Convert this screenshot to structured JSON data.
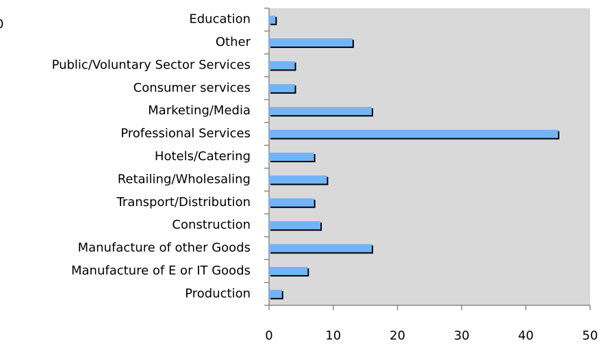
{
  "chart_data": {
    "type": "bar",
    "orientation": "horizontal",
    "annotation": "0",
    "categories": [
      "Education",
      "Other",
      "Public/Voluntary Sector Services",
      "Consumer services",
      "Marketing/Media",
      "Professional Services",
      "Hotels/Catering",
      "Retailing/Wholesaling",
      "Transport/Distribution",
      "Construction",
      "Manufacture of other Goods",
      "Manufacture of E or IT Goods",
      "Production"
    ],
    "values": [
      1,
      13,
      4,
      4,
      16,
      45,
      7,
      9,
      7,
      8,
      16,
      6,
      2
    ],
    "color": "#73b4f8",
    "xlim": [
      0,
      50
    ],
    "xticks": [
      0,
      10,
      20,
      30,
      40,
      50
    ]
  }
}
